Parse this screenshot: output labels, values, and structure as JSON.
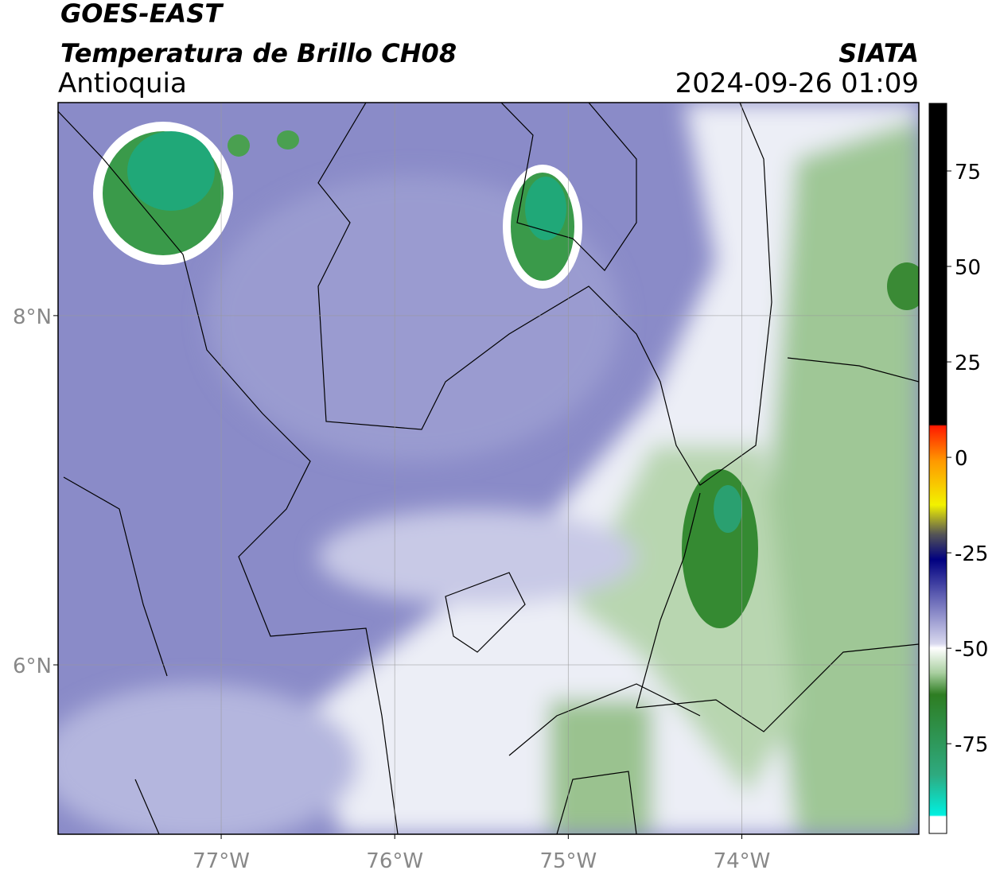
{
  "header": {
    "title": "GOES-EAST",
    "subtitle": "Temperatura de Brillo CH08",
    "region": "Antioquia",
    "source": "SIATA",
    "timestamp": "2024-09-26 01:09"
  },
  "map": {
    "lonlim": [
      -77.94,
      -72.98
    ],
    "latlim": [
      5.03,
      9.22
    ],
    "lon_ticks": [
      {
        "value": -77,
        "label": "77°W"
      },
      {
        "value": -76,
        "label": "76°W"
      },
      {
        "value": -75,
        "label": "75°W"
      },
      {
        "value": -74,
        "label": "74°W"
      }
    ],
    "lat_ticks": [
      {
        "value": 8,
        "label": "8°N"
      },
      {
        "value": 6,
        "label": "6°N"
      }
    ]
  },
  "colorbar": {
    "lim": [
      -98.5,
      92.7
    ],
    "ticks": [
      -75,
      -50,
      -25,
      0,
      25,
      50,
      75
    ]
  }
}
